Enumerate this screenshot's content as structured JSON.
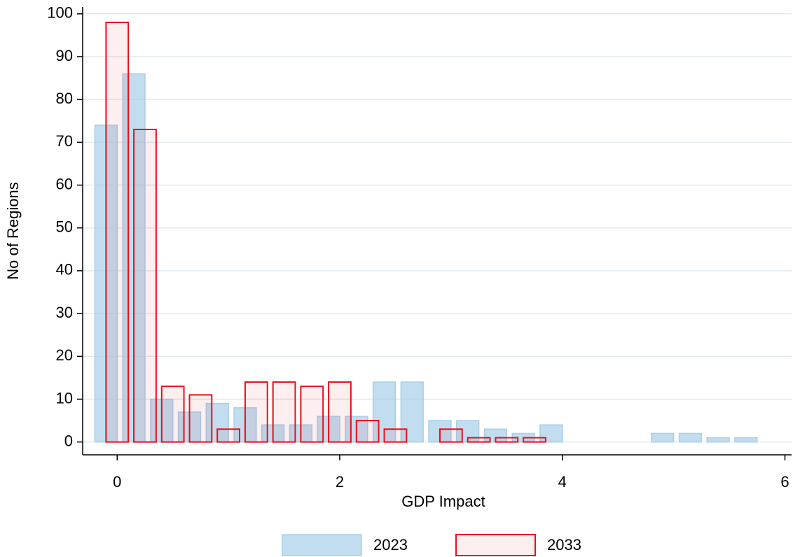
{
  "chart_data": {
    "type": "bar",
    "x_label": "GDP Impact",
    "y_label": "No of Regions",
    "xlim": [
      -0.31,
      6.06
    ],
    "xticks": [
      0,
      2,
      4,
      6
    ],
    "ylim": [
      -3,
      101.6
    ],
    "yticks": [
      0,
      10,
      20,
      30,
      40,
      50,
      60,
      70,
      80,
      90,
      100
    ],
    "grid": true,
    "legend": "bottom",
    "series": [
      {
        "name": "2023",
        "color": "#a6cfe8",
        "x": [
          -0.1,
          0.15,
          0.4,
          0.65,
          0.9,
          1.15,
          1.4,
          1.65,
          1.9,
          2.15,
          2.4,
          2.65,
          2.9,
          3.15,
          3.4,
          3.65,
          3.9,
          4.9,
          5.15,
          5.4,
          5.65
        ],
        "values": [
          74,
          86,
          10,
          7,
          9,
          8,
          4,
          4,
          6,
          6,
          14,
          14,
          5,
          5,
          3,
          2,
          4,
          2,
          2,
          1,
          1
        ]
      },
      {
        "name": "2033",
        "color": "#e8101a",
        "x": [
          0,
          0.25,
          0.5,
          0.75,
          1.0,
          1.25,
          1.5,
          1.75,
          2.0,
          2.25,
          2.5,
          3.0,
          3.25,
          3.5,
          3.75
        ],
        "values": [
          98,
          73,
          13,
          11,
          3,
          14,
          14,
          13,
          14,
          5,
          3,
          3,
          1,
          1,
          1
        ]
      }
    ]
  }
}
